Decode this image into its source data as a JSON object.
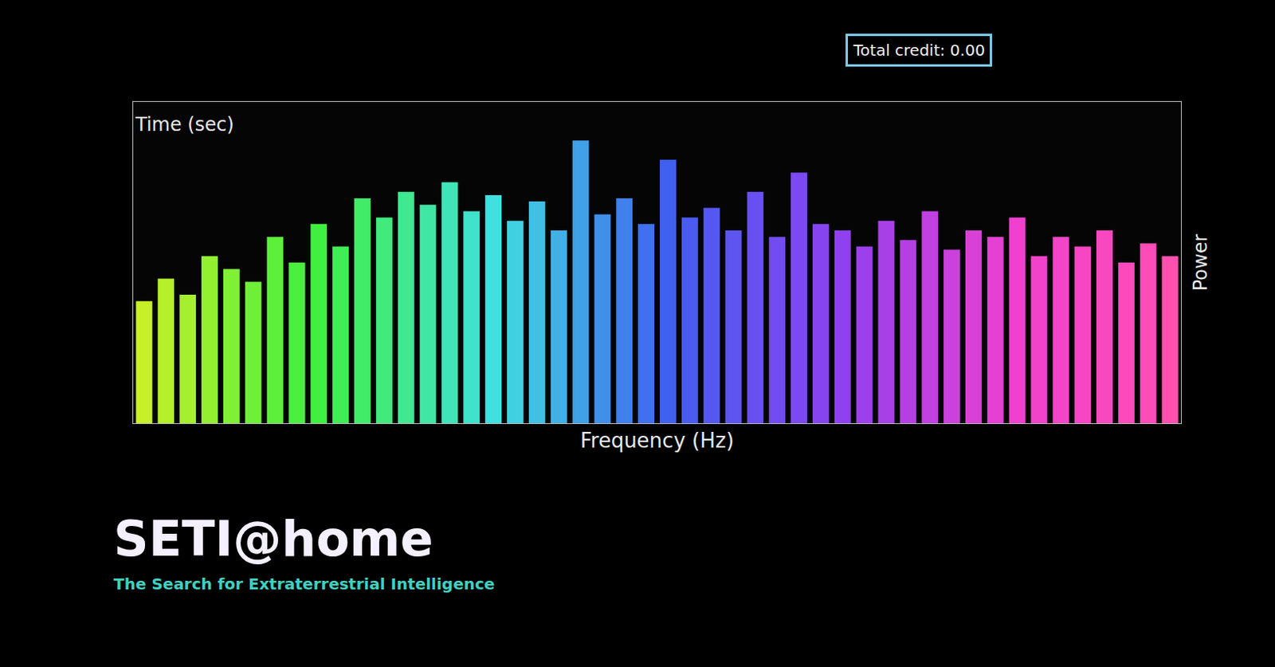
{
  "chart_data": {
    "type": "bar",
    "title": "SETI@home",
    "subtitle": "The Search for Extraterrestrial Intelligence",
    "xlabel": "Frequency (Hz)",
    "ylabel": "Power",
    "zlabel": "Time (sec)",
    "annotations": [
      "Total credit: 0.00"
    ],
    "categories": [
      null,
      null,
      null,
      null,
      null,
      null,
      null,
      null,
      null,
      null,
      null,
      null,
      null,
      null,
      null,
      null,
      null,
      null,
      null,
      null,
      null,
      null,
      null,
      null,
      null,
      null,
      null,
      null,
      null,
      null,
      null,
      null,
      null,
      null,
      null,
      null,
      null,
      null,
      null,
      null,
      null,
      null,
      null,
      null,
      null,
      null,
      null,
      null
    ],
    "values": [
      38,
      45,
      40,
      52,
      48,
      44,
      58,
      50,
      62,
      55,
      70,
      64,
      72,
      68,
      75,
      66,
      71,
      63,
      69,
      60,
      88,
      65,
      70,
      62,
      82,
      64,
      67,
      60,
      72,
      58,
      78,
      62,
      60,
      55,
      63,
      57,
      66,
      54,
      60,
      58,
      64,
      52,
      58,
      55,
      60,
      50,
      56,
      52
    ],
    "colors": [
      "#c8f028",
      "#b6f02b",
      "#a4f02e",
      "#92f031",
      "#80f034",
      "#6ef037",
      "#5cf03a",
      "#4af03d",
      "#40f040",
      "#40ee54",
      "#40ec68",
      "#40ea7c",
      "#40e890",
      "#40e6a4",
      "#40e4b8",
      "#40e2cc",
      "#40e0e0",
      "#40d0e2",
      "#40c0e4",
      "#40b0e6",
      "#40a0e8",
      "#4090ea",
      "#4080ec",
      "#4070ee",
      "#4060f0",
      "#4a5cf0",
      "#5458f0",
      "#5e54f0",
      "#6850f0",
      "#724cf0",
      "#7c48f0",
      "#8644f0",
      "#9040f0",
      "#9c40ec",
      "#a840e8",
      "#b440e4",
      "#c040e0",
      "#cc40dc",
      "#d840d8",
      "#e440d4",
      "#f040d0",
      "#f242cc",
      "#f444c8",
      "#f646c4",
      "#f848c0",
      "#fa4abc",
      "#fc4cb8",
      "#ff50b0"
    ],
    "ylim": [
      0,
      100
    ],
    "tick_labels": false,
    "grid": false
  }
}
